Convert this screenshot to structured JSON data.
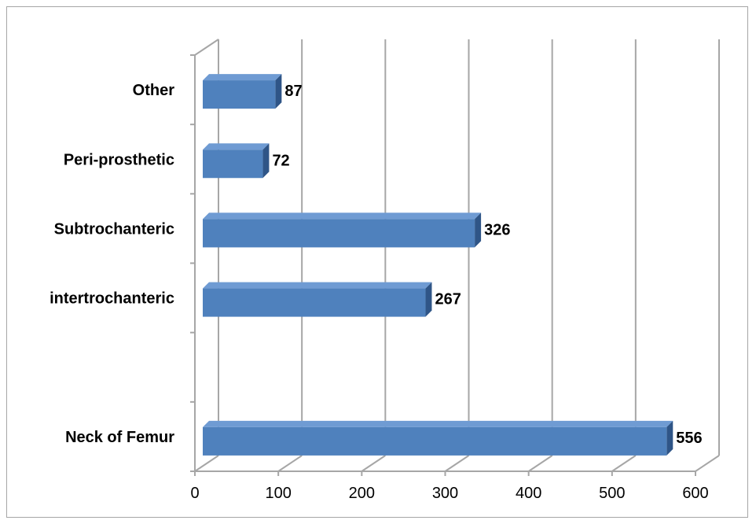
{
  "chart_data": {
    "type": "bar",
    "orientation": "horizontal",
    "three_d": true,
    "categories": [
      "Neck of Femur",
      "",
      "intertrochanteric",
      "Subtrochanteric",
      "Peri-prosthetic",
      "Other"
    ],
    "values": [
      556,
      null,
      267,
      326,
      72,
      87
    ],
    "data_labels": [
      "556",
      "",
      "267",
      "326",
      "72",
      "87"
    ],
    "xlim": [
      0,
      600
    ],
    "x_ticks": [
      0,
      100,
      200,
      300,
      400,
      500,
      600
    ],
    "x_tick_labels": [
      "0",
      "100",
      "200",
      "300",
      "400",
      "500",
      "600"
    ],
    "title": "",
    "xlabel": "",
    "ylabel": "",
    "grid": "vertical",
    "legend": "none",
    "colors": {
      "bar_front": "#4f81bd",
      "bar_top": "#6f9bd3",
      "bar_side": "#2f5587",
      "gridline": "#a6a6a6",
      "border": "#a6a6a6"
    }
  }
}
